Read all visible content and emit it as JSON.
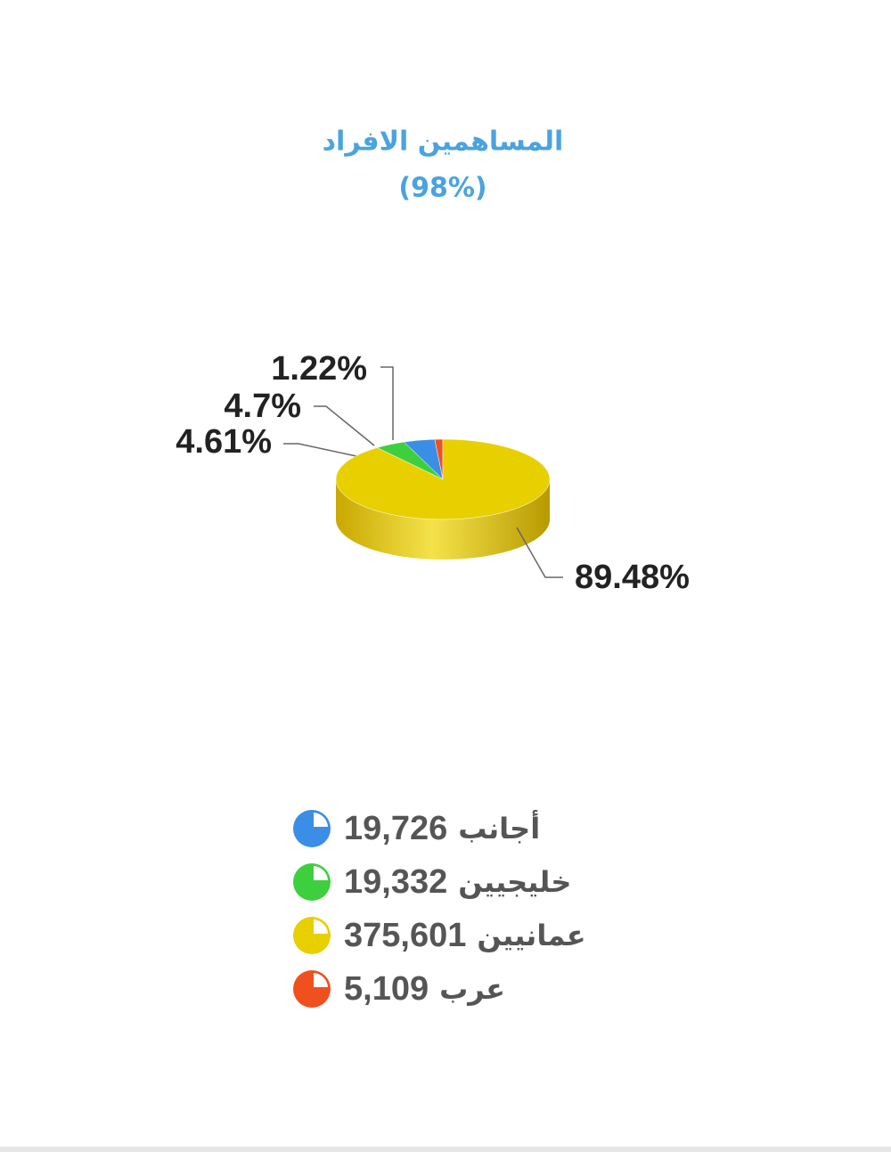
{
  "chart_data": {
    "type": "pie3d",
    "title": "المساهمين الافراد",
    "subtitle": "(98%)",
    "categories": [
      "أجانب",
      "خليجيين",
      "عمانيين",
      "عرب"
    ],
    "values": [
      4.7,
      4.61,
      89.48,
      1.22
    ],
    "value_labels": [
      "4.7%",
      "4.61%",
      "89.48%",
      "1.22%"
    ],
    "counts": [
      19726,
      19332,
      375601,
      5109
    ],
    "count_labels": [
      "19,726",
      "19,332",
      "375,601",
      "5,109"
    ],
    "colors": [
      "#3a8ee6",
      "#3ecf3e",
      "#e8cf00",
      "#f0501e"
    ]
  }
}
